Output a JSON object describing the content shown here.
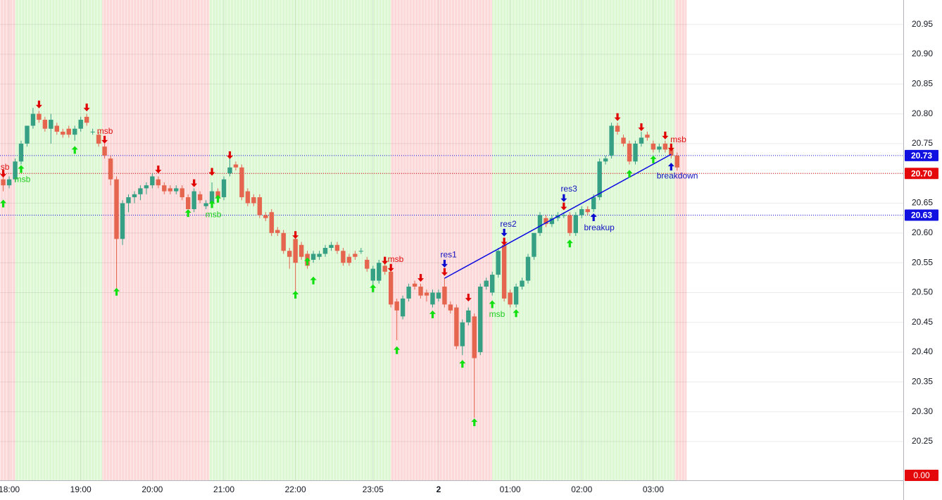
{
  "chart_data": {
    "type": "candlestick",
    "x": [
      -5,
      0,
      5,
      10,
      15,
      20,
      25,
      30,
      35,
      40,
      45,
      50,
      55,
      60,
      65,
      70,
      75,
      80,
      85,
      90,
      95,
      100,
      105,
      110,
      115,
      120,
      125,
      130,
      135,
      140,
      145,
      150,
      155,
      160,
      165,
      170,
      175,
      180,
      185,
      190,
      195,
      200,
      205,
      210,
      215,
      220,
      225,
      230,
      235,
      240,
      245,
      250,
      255,
      260,
      265,
      270,
      275,
      280,
      285,
      290,
      295,
      300,
      305,
      310,
      315,
      320,
      325,
      330,
      335,
      340,
      345,
      350,
      355,
      360,
      365,
      370,
      375,
      380,
      385,
      390,
      395,
      400,
      405,
      410,
      415,
      420,
      425,
      430,
      435,
      440,
      445,
      450,
      455,
      460,
      465,
      470,
      475,
      480,
      485,
      490,
      495,
      500,
      505,
      510,
      515,
      520,
      525,
      530,
      535,
      540,
      545,
      550,
      555,
      560
    ],
    "open": [
      20.69,
      20.68,
      20.69,
      20.72,
      20.75,
      20.78,
      20.8,
      20.79,
      20.775,
      20.78,
      20.77,
      20.775,
      20.765,
      20.775,
      20.795,
      20.77,
      20.765,
      20.745,
      20.725,
      20.69,
      20.59,
      20.65,
      20.66,
      20.665,
      20.675,
      20.68,
      20.69,
      20.68,
      20.675,
      20.67,
      20.675,
      20.66,
      20.64,
      20.665,
      20.645,
      20.65,
      20.67,
      20.66,
      20.7,
      20.715,
      20.71,
      20.67,
      20.66,
      20.66,
      20.63,
      20.635,
      20.605,
      20.6,
      20.57,
      20.59,
      20.58,
      20.565,
      20.555,
      20.56,
      20.565,
      20.575,
      20.58,
      20.57,
      20.56,
      20.565,
      20.57,
      20.555,
      20.52,
      20.52,
      20.545,
      20.535,
      20.485,
      20.46,
      20.49,
      20.515,
      20.51,
      20.5,
      20.48,
      20.49,
      20.51,
      20.48,
      20.475,
      20.41,
      20.45,
      20.46,
      20.4,
      20.51,
      20.5,
      20.53,
      20.58,
      20.5,
      20.48,
      20.51,
      20.52,
      20.56,
      20.6,
      20.625,
      20.615,
      20.625,
      20.63,
      20.63,
      20.6,
      20.63,
      20.64,
      20.64,
      20.66,
      20.72,
      20.73,
      20.78,
      20.76,
      20.75,
      20.72,
      20.75,
      20.765,
      20.75,
      20.74,
      20.75,
      20.74,
      20.73
    ],
    "high": [
      20.7,
      20.695,
      20.725,
      20.755,
      20.78,
      20.81,
      20.805,
      20.795,
      20.8,
      20.785,
      20.775,
      20.78,
      20.78,
      20.795,
      20.8,
      20.775,
      20.77,
      20.75,
      20.73,
      20.695,
      20.655,
      20.665,
      20.67,
      20.68,
      20.685,
      20.7,
      20.695,
      20.685,
      20.68,
      20.68,
      20.68,
      20.665,
      20.675,
      20.67,
      20.655,
      20.685,
      20.675,
      20.695,
      20.725,
      20.72,
      20.715,
      20.675,
      20.665,
      20.665,
      20.635,
      20.64,
      20.61,
      20.605,
      20.575,
      20.595,
      20.585,
      20.57,
      20.57,
      20.57,
      20.58,
      20.585,
      20.585,
      20.575,
      20.565,
      20.57,
      20.575,
      20.56,
      20.545,
      20.555,
      20.55,
      20.54,
      20.49,
      20.495,
      20.515,
      20.52,
      20.515,
      20.505,
      20.505,
      20.505,
      20.525,
      20.485,
      20.48,
      20.455,
      20.475,
      20.465,
      20.515,
      20.525,
      20.535,
      20.575,
      20.585,
      20.505,
      20.515,
      20.525,
      20.565,
      20.6,
      20.635,
      20.63,
      20.63,
      20.635,
      20.635,
      20.635,
      20.635,
      20.645,
      20.645,
      20.665,
      20.725,
      20.73,
      20.785,
      20.785,
      20.765,
      20.755,
      20.755,
      20.77,
      20.77,
      20.755,
      20.75,
      20.755,
      20.745,
      20.735
    ],
    "low": [
      20.67,
      20.675,
      20.685,
      20.715,
      20.745,
      20.775,
      20.785,
      20.77,
      20.75,
      20.765,
      20.76,
      20.76,
      20.755,
      20.77,
      20.78,
      20.765,
      20.745,
      20.725,
      20.68,
      20.5,
      20.58,
      20.635,
      20.65,
      20.655,
      20.665,
      20.675,
      20.675,
      20.665,
      20.665,
      20.665,
      20.655,
      20.64,
      20.635,
      20.65,
      20.64,
      20.645,
      20.655,
      20.655,
      20.695,
      20.705,
      20.655,
      20.645,
      20.645,
      20.625,
      20.62,
      20.595,
      20.595,
      20.565,
      20.54,
      20.5,
      20.555,
      20.54,
      20.55,
      20.555,
      20.56,
      20.57,
      20.565,
      20.545,
      20.545,
      20.555,
      20.565,
      20.535,
      20.5,
      20.515,
      20.53,
      20.475,
      20.42,
      20.455,
      20.485,
      20.505,
      20.49,
      20.485,
      20.475,
      20.485,
      20.475,
      20.465,
      20.405,
      20.395,
      20.445,
      20.29,
      20.395,
      20.505,
      20.495,
      20.525,
      20.485,
      20.475,
      20.475,
      20.505,
      20.515,
      20.555,
      20.595,
      20.61,
      20.61,
      20.62,
      20.625,
      20.595,
      20.595,
      20.625,
      20.63,
      20.635,
      20.655,
      20.715,
      20.725,
      20.765,
      20.745,
      20.715,
      20.715,
      20.745,
      20.755,
      20.735,
      20.735,
      20.735,
      20.725,
      20.705
    ],
    "close": [
      20.68,
      20.69,
      20.72,
      20.75,
      20.78,
      20.8,
      20.79,
      20.775,
      20.79,
      20.77,
      20.765,
      20.765,
      20.775,
      20.79,
      20.785,
      20.77,
      20.75,
      20.73,
      20.69,
      20.59,
      20.65,
      20.66,
      20.665,
      20.675,
      20.68,
      20.695,
      20.68,
      20.67,
      20.67,
      20.675,
      20.66,
      20.64,
      20.67,
      20.655,
      20.65,
      20.67,
      20.66,
      20.69,
      20.71,
      20.71,
      20.66,
      20.65,
      20.65,
      20.63,
      20.625,
      20.6,
      20.6,
      20.57,
      20.56,
      20.55,
      20.56,
      20.545,
      20.565,
      20.565,
      20.575,
      20.58,
      20.57,
      20.55,
      20.55,
      20.56,
      20.57,
      20.54,
      20.54,
      20.55,
      20.535,
      20.48,
      20.47,
      20.49,
      20.51,
      20.51,
      20.495,
      20.495,
      20.5,
      20.5,
      20.48,
      20.47,
      20.41,
      20.45,
      20.47,
      20.39,
      20.51,
      20.52,
      20.53,
      20.57,
      20.49,
      20.48,
      20.51,
      20.52,
      20.56,
      20.6,
      20.63,
      20.615,
      20.625,
      20.63,
      20.63,
      20.6,
      20.63,
      20.64,
      20.635,
      20.66,
      20.72,
      20.725,
      20.78,
      20.77,
      20.75,
      20.72,
      20.75,
      20.76,
      20.76,
      20.74,
      20.745,
      20.74,
      20.73,
      20.71
    ],
    "up_color": "#35a083",
    "down_color": "#e5654f",
    "xlim": [
      -7.7,
      749.6
    ],
    "ylim": [
      20.185,
      20.991
    ],
    "xticks": [
      {
        "value": 0,
        "label": "18:00"
      },
      {
        "value": 60,
        "label": "19:00"
      },
      {
        "value": 120,
        "label": "20:00"
      },
      {
        "value": 180,
        "label": "21:00"
      },
      {
        "value": 240,
        "label": "22:00"
      },
      {
        "value": 305,
        "label": "23:05"
      },
      {
        "value": 360,
        "label": "2",
        "bold": true
      },
      {
        "value": 420,
        "label": "01:00"
      },
      {
        "value": 480,
        "label": "02:00"
      },
      {
        "value": 540,
        "label": "03:00"
      }
    ],
    "yticks": [
      20.25,
      {
        "value": 20.3,
        "label": "20.30"
      },
      20.35,
      {
        "value": 20.4,
        "label": "20.40"
      },
      20.45,
      {
        "value": 20.5,
        "label": "20.50"
      },
      20.55,
      {
        "value": 20.6,
        "label": "20.60"
      },
      20.65,
      {
        "value": 20.7,
        "label": "20.70"
      },
      20.75,
      {
        "value": 20.8,
        "label": "20.80"
      },
      20.85,
      {
        "value": 20.9,
        "label": "20.90"
      },
      20.95
    ],
    "grid": true,
    "zones": [
      {
        "start": -7.7,
        "end": 5,
        "color": "#fcd8d8"
      },
      {
        "start": 5,
        "end": 78,
        "color": "#dcf8d3"
      },
      {
        "start": 78,
        "end": 168,
        "color": "#fcd8d8"
      },
      {
        "start": 168,
        "end": 320,
        "color": "#dcf8d3"
      },
      {
        "start": 320,
        "end": 405,
        "color": "#fcd8d8"
      },
      {
        "start": 405,
        "end": 558,
        "color": "#dcf8d3"
      },
      {
        "start": 558,
        "end": 568,
        "color": "#fcd8d8"
      }
    ],
    "levels": [
      {
        "value": 20.73,
        "label": "20.73",
        "color": "#1010e0"
      },
      {
        "value": 20.7,
        "label": "20.70",
        "color": "#e4080a"
      },
      {
        "value": 20.63,
        "label": "20.63",
        "color": "#1010e0"
      }
    ],
    "bottom_badge": {
      "label": "0.00",
      "color": "#e4080a"
    },
    "arrows": [
      {
        "dir": "down",
        "color": "#e00000",
        "x": [
          -5,
          25,
          65,
          80,
          125,
          155,
          170,
          185,
          240,
          315,
          320,
          345,
          365,
          385,
          415,
          465,
          510,
          530,
          550,
          555
        ],
        "y": [
          20.699,
          20.815,
          20.81,
          20.756,
          20.706,
          20.683,
          20.702,
          20.73,
          20.596,
          20.553,
          20.541,
          20.524,
          20.534,
          20.491,
          20.585,
          20.644,
          20.794,
          20.777,
          20.763,
          20.743
        ]
      },
      {
        "dir": "up",
        "color": "#10e010",
        "x": [
          -5,
          10,
          55,
          90,
          150,
          170,
          175,
          240,
          250,
          255,
          305,
          325,
          355,
          380,
          390,
          405,
          425,
          470,
          520,
          540
        ],
        "y": [
          20.65,
          20.708,
          20.74,
          20.502,
          20.634,
          20.649,
          20.658,
          20.497,
          20.553,
          20.521,
          20.508,
          20.404,
          20.464,
          20.381,
          20.283,
          20.481,
          20.466,
          20.583,
          20.7,
          20.724
        ]
      },
      {
        "dir": "down",
        "color": "#0a0ad0",
        "x": [
          365,
          415,
          465
        ],
        "y": [
          20.548,
          20.6,
          20.658
        ]
      },
      {
        "dir": "up",
        "color": "#0a0ad0",
        "x": [
          490,
          555
        ],
        "y": [
          20.627,
          20.712
        ]
      }
    ],
    "trendline": {
      "color": "#0a0ae0",
      "x": [
        365,
        555
      ],
      "y": [
        20.524,
        20.732
      ]
    },
    "annotations": [
      {
        "text": "msb",
        "x": -6.5,
        "y": 20.71,
        "color": "#e01010"
      },
      {
        "text": "msb",
        "x": 11.2,
        "y": 20.689,
        "color": "#20cc20"
      },
      {
        "text": "msb",
        "x": 80.3,
        "y": 20.77,
        "color": "#e01010"
      },
      {
        "text": "msb",
        "x": 171.2,
        "y": 20.63,
        "color": "#20cc20"
      },
      {
        "text": "msb",
        "x": 324,
        "y": 20.555,
        "color": "#e01010"
      },
      {
        "text": "msb",
        "x": 409,
        "y": 20.463,
        "color": "#20cc20"
      },
      {
        "text": "msb",
        "x": 561,
        "y": 20.756,
        "color": "#e01010"
      },
      {
        "text": "res1",
        "x": 368.4,
        "y": 20.563,
        "color": "#1010c0"
      },
      {
        "text": "res2",
        "x": 418.5,
        "y": 20.614,
        "color": "#1010c0"
      },
      {
        "text": "res3",
        "x": 469.3,
        "y": 20.673,
        "color": "#1010c0"
      },
      {
        "text": "breakup",
        "x": 494.7,
        "y": 20.608,
        "color": "#1010c0"
      },
      {
        "text": "breakdown",
        "x": 560.2,
        "y": 20.695,
        "color": "#1010c0"
      }
    ]
  }
}
